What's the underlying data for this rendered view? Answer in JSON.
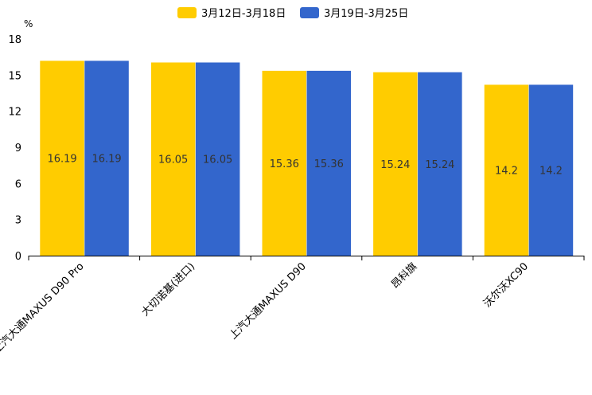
{
  "chart_data": {
    "type": "bar",
    "title": "",
    "ylabel": "%",
    "xlabel": "",
    "ylim": [
      0,
      18
    ],
    "yticks": [
      0,
      3,
      6,
      9,
      12,
      15,
      18
    ],
    "categories": [
      "上汽大通MAXUS D90 Pro",
      "大切诺基(进口)",
      "上汽大通MAXUS D90",
      "昂科旗",
      "沃尔沃XC90"
    ],
    "series": [
      {
        "name": "3月12日-3月18日",
        "color": "#FFCC00",
        "values": [
          16.19,
          16.05,
          15.36,
          15.24,
          14.2
        ]
      },
      {
        "name": "3月19日-3月25日",
        "color": "#3366CC",
        "values": [
          16.19,
          16.05,
          15.36,
          15.24,
          14.2
        ]
      }
    ],
    "legend_position": "top-center",
    "grid": false
  }
}
